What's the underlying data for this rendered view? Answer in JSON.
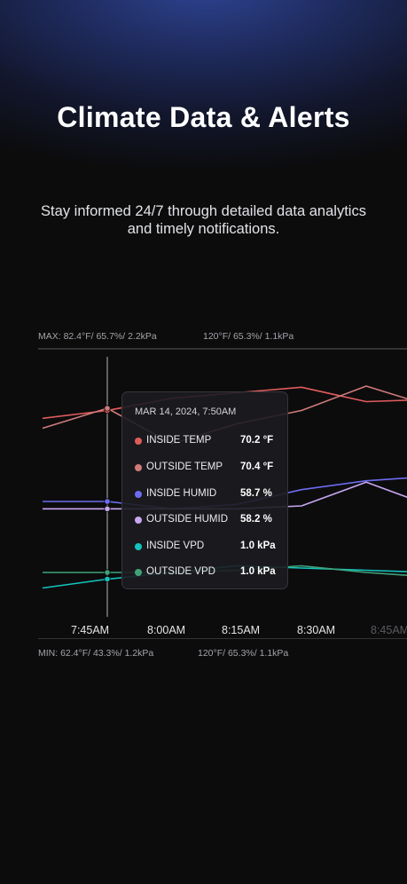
{
  "hero": {
    "title": "Climate Data & Alerts",
    "subtitle": "Stay informed 24/7 through detailed data analytics and timely notifications."
  },
  "chart_header": {
    "max_label": "MAX: 82.4°F/ 65.7%/ 2.2kPa",
    "max_right": "120°F/ 65.3%/ 1.1kPa",
    "min_label": "MIN: 62.4°F/ 43.3%/ 1.2kPa",
    "min_right": "120°F/ 65.3%/ 1.1kPa"
  },
  "tooltip": {
    "date": "MAR 14, 2024, 7:50AM",
    "rows": [
      {
        "label": "INSIDE TEMP",
        "value": "70.2 °F",
        "color": "#e15b5b"
      },
      {
        "label": "OUTSIDE TEMP",
        "value": "70.4 °F",
        "color": "#d07b7b"
      },
      {
        "label": "INSIDE HUMID",
        "value": "58.7 %",
        "color": "#6c6cf0"
      },
      {
        "label": "OUTSIDE HUMID",
        "value": "58.2 %",
        "color": "#c8a6f0"
      },
      {
        "label": "INSIDE VPD",
        "value": "1.0 kPa",
        "color": "#14c4be"
      },
      {
        "label": "OUTSIDE VPD",
        "value": "1.0 kPa",
        "color": "#3fa37a"
      }
    ]
  },
  "chart_data": {
    "type": "line",
    "x": [
      "7:40",
      "7:50",
      "8:00",
      "8:10",
      "8:20",
      "8:30",
      "8:40",
      "8:50"
    ],
    "x_tick_labels": [
      "7:45AM",
      "8:00AM",
      "8:15AM",
      "8:30AM",
      "8:45AM"
    ],
    "cursor_x": "7:50",
    "series": [
      {
        "name": "INSIDE TEMP",
        "color": "#e15b5b",
        "values": [
          69.5,
          70.2,
          71.3,
          71.8,
          72.3,
          71.0,
          71.2,
          71.4
        ]
      },
      {
        "name": "OUTSIDE TEMP",
        "color": "#d07b7b",
        "values": [
          68.6,
          70.4,
          67.2,
          69.0,
          70.2,
          72.4,
          70.6,
          68.4
        ]
      },
      {
        "name": "INSIDE HUMID",
        "color": "#6c6cf0",
        "values": [
          58.7,
          58.7,
          58.2,
          58.5,
          59.5,
          60.1,
          60.4,
          60.7
        ]
      },
      {
        "name": "OUTSIDE HUMID",
        "color": "#c8a6f0",
        "values": [
          58.2,
          58.2,
          58.2,
          58.2,
          58.4,
          60.0,
          58.4,
          58.8
        ]
      },
      {
        "name": "INSIDE VPD",
        "color": "#14c4be",
        "values": [
          0.96,
          1.0,
          1.03,
          1.06,
          1.05,
          1.04,
          1.03,
          1.0
        ]
      },
      {
        "name": "OUTSIDE VPD",
        "color": "#3fa37a",
        "values": [
          1.03,
          1.03,
          1.03,
          1.04,
          1.06,
          1.03,
          1.01,
          1.0
        ]
      }
    ]
  }
}
